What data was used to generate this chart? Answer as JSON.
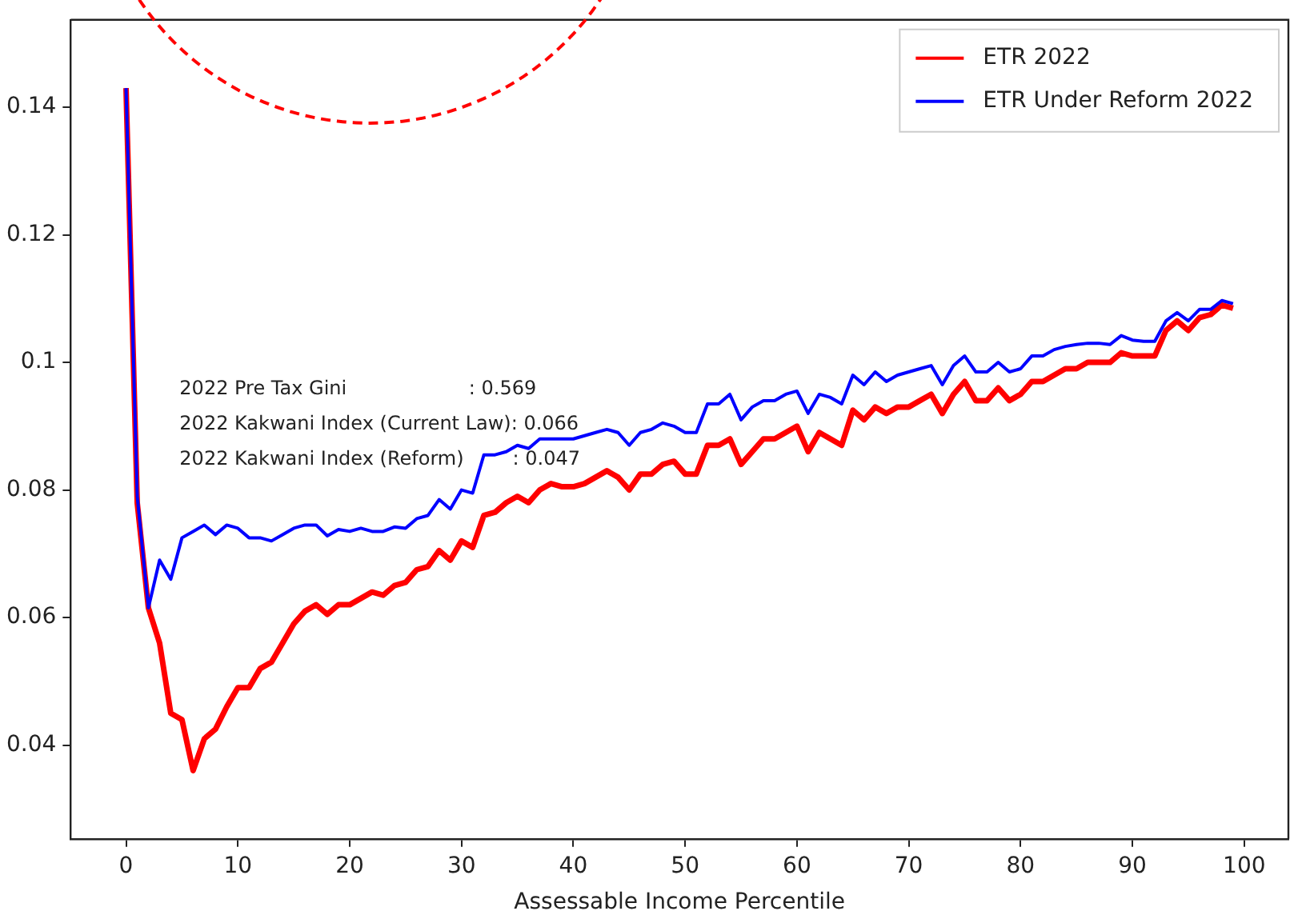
{
  "chart_data": {
    "type": "line",
    "xlabel": "Assessable Income Percentile",
    "x": [
      0,
      1,
      2,
      3,
      4,
      5,
      6,
      7,
      8,
      9,
      10,
      11,
      12,
      13,
      14,
      15,
      16,
      17,
      18,
      19,
      20,
      21,
      22,
      23,
      24,
      25,
      26,
      27,
      28,
      29,
      30,
      31,
      32,
      33,
      34,
      35,
      36,
      37,
      38,
      39,
      40,
      41,
      42,
      43,
      44,
      45,
      46,
      47,
      48,
      49,
      50,
      51,
      52,
      53,
      54,
      55,
      56,
      57,
      58,
      59,
      60,
      61,
      62,
      63,
      64,
      65,
      66,
      67,
      68,
      69,
      70,
      71,
      72,
      73,
      74,
      75,
      76,
      77,
      78,
      79,
      80,
      81,
      82,
      83,
      84,
      85,
      86,
      87,
      88,
      89,
      90,
      91,
      92,
      93,
      94,
      95,
      96,
      97,
      98,
      99
    ],
    "series": [
      {
        "name": "ETR 2022",
        "color": "#ff0000",
        "values": [
          0.143,
          0.078,
          0.0615,
          0.056,
          0.045,
          0.044,
          0.036,
          0.041,
          0.0425,
          0.046,
          0.049,
          0.049,
          0.052,
          0.053,
          0.056,
          0.059,
          0.061,
          0.062,
          0.0605,
          0.062,
          0.062,
          0.063,
          0.064,
          0.0635,
          0.065,
          0.0655,
          0.0675,
          0.068,
          0.0705,
          0.069,
          0.072,
          0.071,
          0.076,
          0.0765,
          0.078,
          0.079,
          0.078,
          0.08,
          0.081,
          0.0805,
          0.0805,
          0.081,
          0.082,
          0.083,
          0.082,
          0.08,
          0.0825,
          0.0825,
          0.084,
          0.0845,
          0.0825,
          0.0825,
          0.087,
          0.087,
          0.088,
          0.084,
          0.086,
          0.088,
          0.088,
          0.089,
          0.09,
          0.086,
          0.089,
          0.088,
          0.087,
          0.0925,
          0.091,
          0.093,
          0.092,
          0.093,
          0.093,
          0.094,
          0.095,
          0.092,
          0.095,
          0.097,
          0.094,
          0.094,
          0.096,
          0.094,
          0.095,
          0.097,
          0.097,
          0.098,
          0.099,
          0.099,
          0.1,
          0.1,
          0.1,
          0.1015,
          0.101,
          0.101,
          0.101,
          0.105,
          0.1065,
          0.105,
          0.107,
          0.1075,
          0.109,
          0.1085
        ]
      },
      {
        "name": "ETR Under Reform 2022",
        "color": "#0000ff",
        "values": [
          0.143,
          0.079,
          0.0615,
          0.069,
          0.066,
          0.0725,
          0.0735,
          0.0745,
          0.073,
          0.0745,
          0.074,
          0.0725,
          0.0725,
          0.072,
          0.073,
          0.074,
          0.0745,
          0.0745,
          0.0728,
          0.0738,
          0.0735,
          0.074,
          0.0735,
          0.0735,
          0.0742,
          0.074,
          0.0755,
          0.076,
          0.0785,
          0.077,
          0.08,
          0.0795,
          0.0855,
          0.0855,
          0.086,
          0.087,
          0.0865,
          0.088,
          0.088,
          0.088,
          0.088,
          0.0885,
          0.089,
          0.0895,
          0.089,
          0.087,
          0.089,
          0.0895,
          0.0905,
          0.09,
          0.089,
          0.089,
          0.0935,
          0.0935,
          0.095,
          0.091,
          0.093,
          0.094,
          0.094,
          0.095,
          0.0955,
          0.092,
          0.095,
          0.0945,
          0.0935,
          0.098,
          0.0965,
          0.0985,
          0.097,
          0.098,
          0.0985,
          0.099,
          0.0995,
          0.0965,
          0.0995,
          0.101,
          0.0985,
          0.0985,
          0.1,
          0.0985,
          0.099,
          0.101,
          0.101,
          0.102,
          0.1025,
          0.1028,
          0.103,
          0.103,
          0.1028,
          0.1042,
          0.1035,
          0.1033,
          0.1033,
          0.1065,
          0.1078,
          0.1065,
          0.1083,
          0.1083,
          0.1097,
          0.1092
        ]
      }
    ],
    "xlim": [
      -4.95,
      103.95
    ],
    "xticks": [
      0,
      10,
      20,
      30,
      40,
      50,
      60,
      70,
      80,
      90,
      100
    ],
    "ylim": [
      0.0253,
      0.1537
    ],
    "yticks": [
      0.04,
      0.06,
      0.08,
      0.1,
      0.12,
      0.14
    ],
    "annotations": [
      "2022 Pre Tax Gini                    : 0.569",
      "2022 Kakwani Index (Current Law): 0.066",
      "2022 Kakwani Index (Reform)        : 0.047"
    ],
    "legend": "top right",
    "grid": false,
    "marker": "none",
    "line_style": "solid"
  }
}
